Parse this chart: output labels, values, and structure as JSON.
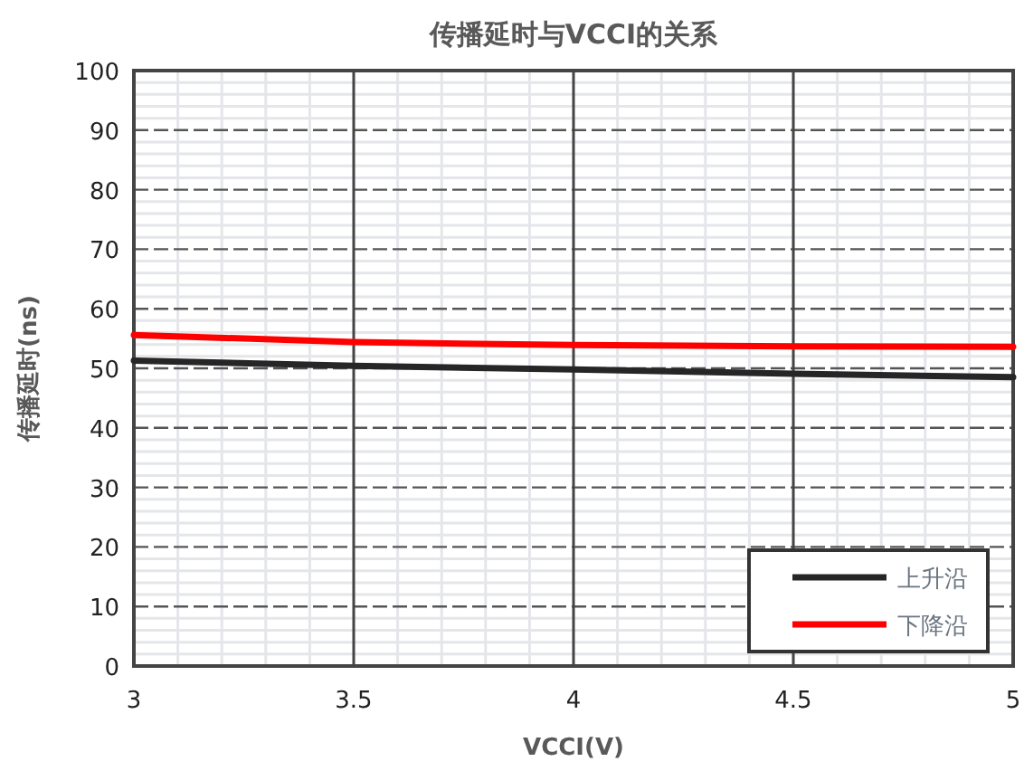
{
  "chart_data": {
    "type": "line",
    "title": "传播延时与VCCI的关系",
    "xlabel": "VCCI(V)",
    "ylabel": "传播延时(ns)",
    "x": [
      3,
      3.5,
      4,
      4.5,
      5
    ],
    "series": [
      {
        "name": "上升沿",
        "color": "#262626",
        "values": [
          51.3,
          50.4,
          49.8,
          49.1,
          48.5
        ]
      },
      {
        "name": "下降沿",
        "color": "#ff0000",
        "values": [
          55.6,
          54.4,
          53.9,
          53.7,
          53.6
        ]
      }
    ],
    "xlim": [
      3,
      5
    ],
    "xticks": [
      3,
      3.5,
      4,
      4.5,
      5
    ],
    "ylim": [
      0,
      100
    ],
    "yticks": [
      0,
      10,
      20,
      30,
      40,
      50,
      60,
      70,
      80,
      90,
      100
    ],
    "grid": true,
    "legend": "bottom right",
    "marker": "none",
    "line_style": "solid"
  }
}
